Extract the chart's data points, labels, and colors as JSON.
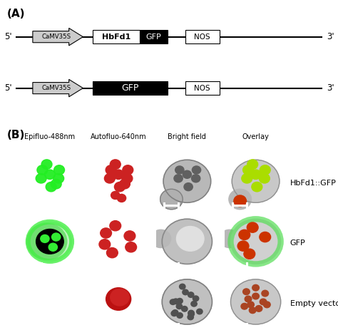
{
  "panel_A_label": "(A)",
  "panel_B_label": "(B)",
  "col_headers": [
    "Epifluo-488nm",
    "Autofluo-640nm",
    "Bright field",
    "Overlay"
  ],
  "row_labels": [
    "HbFd1::GFP",
    "GFP",
    "Empty vector"
  ],
  "background_color": "#ffffff",
  "col_header_fontsize": 7.0,
  "row_label_fontsize": 8.0,
  "panel_label_fontsize": 11,
  "construct1_promoter": "CaMV35S",
  "construct1_gene1": "HbFd1",
  "construct1_gene2": "GFP",
  "construct1_terminator": "NOS",
  "construct2_promoter": "CaMV35S",
  "construct2_gene": "GFP",
  "construct2_terminator": "NOS"
}
